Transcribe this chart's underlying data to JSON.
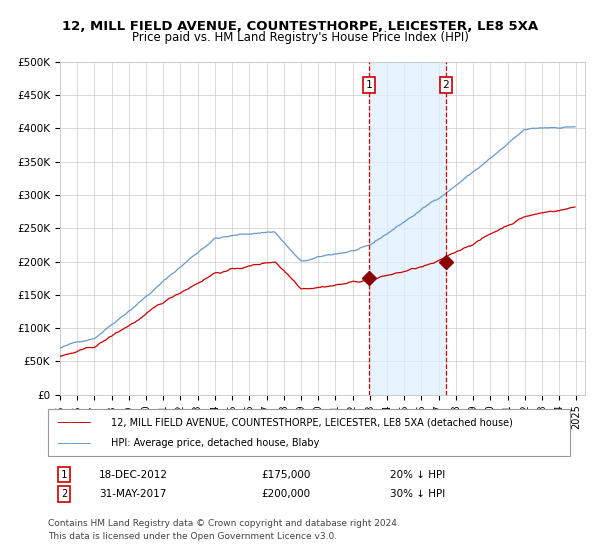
{
  "title": "12, MILL FIELD AVENUE, COUNTESTHORPE, LEICESTER, LE8 5XA",
  "subtitle": "Price paid vs. HM Land Registry's House Price Index (HPI)",
  "ylim": [
    0,
    500000
  ],
  "yticks": [
    0,
    50000,
    100000,
    150000,
    200000,
    250000,
    300000,
    350000,
    400000,
    450000,
    500000
  ],
  "ytick_labels": [
    "£0",
    "£50K",
    "£100K",
    "£150K",
    "£200K",
    "£250K",
    "£300K",
    "£350K",
    "£400K",
    "£450K",
    "£500K"
  ],
  "hpi_color": "#6699cc",
  "price_color": "#cc0000",
  "marker_color": "#8b0000",
  "vline_color": "#cc0000",
  "shade_color": "#ddeeff",
  "event1_year": 2012.95,
  "event2_year": 2017.42,
  "event1_price": 175000,
  "event2_price": 200000,
  "event1_label": "1",
  "event2_label": "2",
  "event1_text": "18-DEC-2012",
  "event1_amount": "£175,000",
  "event1_hpi": "20% ↓ HPI",
  "event2_text": "31-MAY-2017",
  "event2_amount": "£200,000",
  "event2_hpi": "30% ↓ HPI",
  "legend1": "12, MILL FIELD AVENUE, COUNTESTHORPE, LEICESTER, LE8 5XA (detached house)",
  "legend2": "HPI: Average price, detached house, Blaby",
  "footer1": "Contains HM Land Registry data © Crown copyright and database right 2024.",
  "footer2": "This data is licensed under the Open Government Licence v3.0.",
  "bg_color": "#ffffff",
  "grid_color": "#cccccc",
  "title_fontsize": 9.5,
  "tick_fontsize": 7.5
}
